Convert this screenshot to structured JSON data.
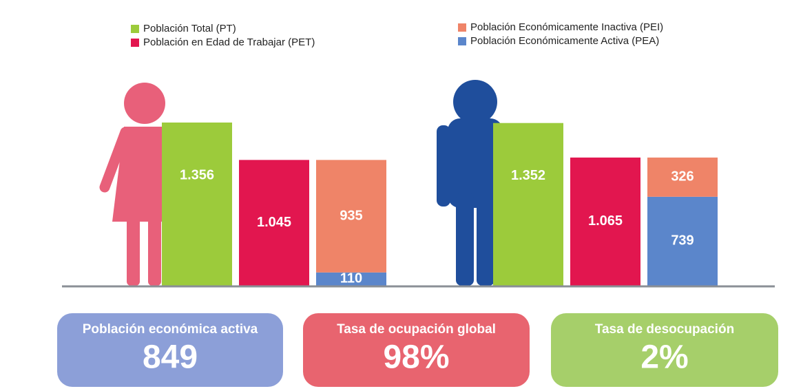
{
  "chart_data": {
    "type": "bar",
    "categories": [
      null,
      null
    ],
    "series": [
      {
        "name": "Población Total (PT)",
        "color": "#9ccb3b",
        "values": [
          1356,
          1352
        ],
        "value_labels": [
          "1.356",
          "1.352"
        ]
      },
      {
        "name": "Población en Edad de Trabajar (PET)",
        "color": "#e2164f",
        "values": [
          1045,
          1065
        ],
        "value_labels": [
          "1.045",
          "1.065"
        ]
      },
      {
        "name": "Población Económicamente Inactiva (PEI)",
        "color": "#ef8468",
        "values": [
          935,
          326
        ],
        "stacked": true
      },
      {
        "name": "Población Económicamente Activa (PEA)",
        "color": "#5b86cb",
        "values": [
          110,
          739
        ],
        "stacked": true
      }
    ]
  },
  "kpis": [
    {
      "label": "Población económica activa",
      "value": "849",
      "color": "#8c9fd8"
    },
    {
      "label": "Tasa de ocupación global",
      "value": "98%",
      "color": "#e8646f"
    },
    {
      "label": "Tasa de desocupación",
      "value": "2%",
      "color": "#a6cf6a"
    }
  ]
}
